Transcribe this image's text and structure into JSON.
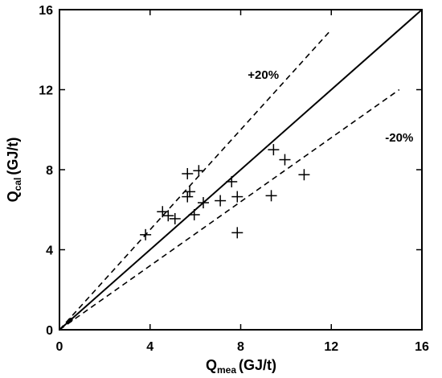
{
  "chart_data": {
    "type": "scatter",
    "xlabel": {
      "main": "Q",
      "sub": "mea",
      "unit": "(GJ/t)"
    },
    "ylabel": {
      "main": "Q",
      "sub": "cal",
      "unit": "(GJ/t)"
    },
    "xlim": [
      0,
      16
    ],
    "ylim": [
      0,
      16
    ],
    "xticks": [
      0,
      4,
      8,
      12,
      16
    ],
    "yticks": [
      0,
      4,
      8,
      12,
      16
    ],
    "grid": false,
    "marker": "plus",
    "points": [
      {
        "x": 3.8,
        "y": 4.75
      },
      {
        "x": 4.55,
        "y": 5.9
      },
      {
        "x": 4.8,
        "y": 5.7
      },
      {
        "x": 5.1,
        "y": 5.55
      },
      {
        "x": 5.65,
        "y": 7.8
      },
      {
        "x": 5.65,
        "y": 6.65
      },
      {
        "x": 5.75,
        "y": 6.9
      },
      {
        "x": 5.95,
        "y": 5.75
      },
      {
        "x": 6.15,
        "y": 7.95
      },
      {
        "x": 6.35,
        "y": 6.35
      },
      {
        "x": 7.1,
        "y": 6.45
      },
      {
        "x": 7.6,
        "y": 7.4
      },
      {
        "x": 7.85,
        "y": 6.65
      },
      {
        "x": 7.85,
        "y": 4.85
      },
      {
        "x": 9.35,
        "y": 6.7
      },
      {
        "x": 9.45,
        "y": 9.0
      },
      {
        "x": 9.95,
        "y": 8.5
      },
      {
        "x": 10.8,
        "y": 7.75
      }
    ],
    "reference_lines": [
      {
        "style": "solid",
        "x": [
          0,
          16
        ],
        "y": [
          0,
          16
        ]
      },
      {
        "style": "dashed",
        "x": [
          0,
          12
        ],
        "y": [
          0,
          15
        ]
      },
      {
        "style": "dashed",
        "x": [
          0,
          15
        ],
        "y": [
          0,
          12
        ]
      }
    ],
    "annotations": [
      {
        "text": "+20%",
        "x": 9.0,
        "y": 12.55
      },
      {
        "text": "-20%",
        "x": 15.0,
        "y": 9.4
      }
    ]
  }
}
